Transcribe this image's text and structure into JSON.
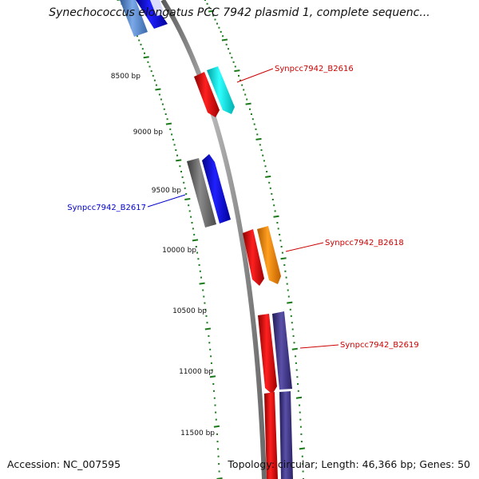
{
  "header": {
    "title": "Synechococcus elongatus PCC 7942 plasmid 1, complete sequenc..."
  },
  "footer": {
    "accession": "Accession: NC_007595",
    "summary": "Topology: circular; Length: 46,366 bp; Genes: 50"
  },
  "ruler": {
    "labels": [
      "8500 bp",
      "9000 bp",
      "9500 bp",
      "10000 bp",
      "10500 bp",
      "11000 bp",
      "11500 bp"
    ]
  },
  "genes": [
    {
      "label": "Synpcc7942_B2616",
      "color": "#cc0000"
    },
    {
      "label": "Synpcc7942_B2617",
      "color": "#0000cc"
    },
    {
      "label": "Synpcc7942_B2618",
      "color": "#cc0000"
    },
    {
      "label": "Synpcc7942_B2619",
      "color": "#cc0000"
    }
  ],
  "colors": {
    "backbone": "#808080",
    "ticks": "#1a7a1a",
    "cds": "#ff0000",
    "blue": "#0000ee",
    "cyan": "#00e5e5",
    "orange": "#ff8c00",
    "gray": "#666666",
    "navy": "#3d3580",
    "steelblue": "#5a86c8"
  }
}
